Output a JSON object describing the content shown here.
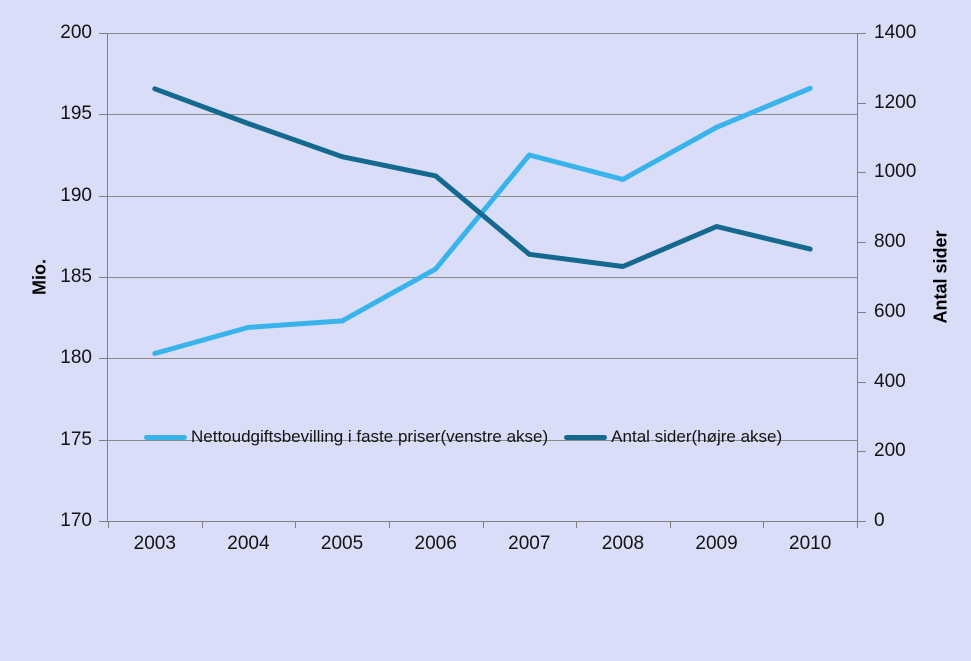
{
  "chart_data": {
    "type": "line",
    "title": "",
    "categories": [
      "2003",
      "2004",
      "2005",
      "2006",
      "2007",
      "2008",
      "2009",
      "2010"
    ],
    "series": [
      {
        "name": "Nettoudgiftsbevilling i faste priser(venstre akse)",
        "axis": "left",
        "color": "#39B4EA",
        "values": [
          180.3,
          181.9,
          182.3,
          185.5,
          192.5,
          191.0,
          194.2,
          196.6
        ]
      },
      {
        "name": "Antal sider(højre akse)",
        "axis": "right",
        "color": "#15698E",
        "values": [
          1240,
          1140,
          1045,
          990,
          765,
          730,
          845,
          780
        ]
      }
    ],
    "left_axis": {
      "label": "Mio.",
      "min": 170,
      "max": 200,
      "step": 5
    },
    "right_axis": {
      "label": "Antal sider",
      "min": 0,
      "max": 1400,
      "step": 200
    },
    "grid": true,
    "legend_position": "inside-bottom-left",
    "colors": {
      "background": "#DADDF7",
      "gridline": "#8A8A8A",
      "axis": "#808080",
      "text": "#000000"
    }
  }
}
